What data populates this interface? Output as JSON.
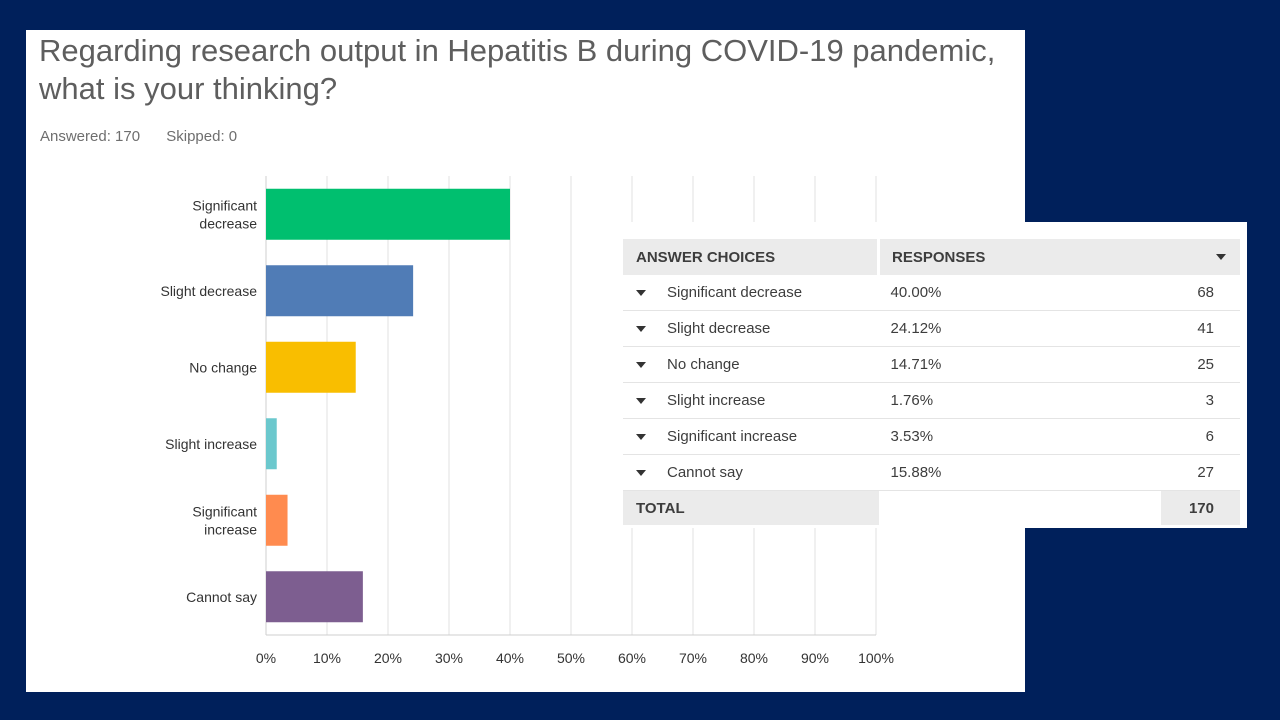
{
  "question": "Regarding research output in Hepatitis B during COVID-19 pandemic, what is your thinking?",
  "stats": {
    "answered": "Answered: 170",
    "skipped": "Skipped: 0"
  },
  "colors": {
    "background": "#00205b",
    "series": [
      "#00bf6f",
      "#507cb6",
      "#f9be00",
      "#6bc8cd",
      "#ff8b4f",
      "#7d5e90"
    ]
  },
  "chart_data": {
    "type": "bar",
    "orientation": "horizontal",
    "categories": [
      "Significant decrease",
      "Slight decrease",
      "No change",
      "Slight increase",
      "Significant increase",
      "Cannot say"
    ],
    "category_lines": [
      [
        "Significant",
        "decrease"
      ],
      [
        "Slight decrease"
      ],
      [
        "No change"
      ],
      [
        "Slight increase"
      ],
      [
        "Significant",
        "increase"
      ],
      [
        "Cannot say"
      ]
    ],
    "values": [
      40.0,
      24.12,
      14.71,
      1.76,
      3.53,
      15.88
    ],
    "xlim": [
      0,
      100
    ],
    "ticks": [
      "0%",
      "10%",
      "20%",
      "30%",
      "40%",
      "50%",
      "60%",
      "70%",
      "80%",
      "90%",
      "100%"
    ],
    "grid": true,
    "legend": "none"
  },
  "table": {
    "headers": {
      "choices": "ANSWER CHOICES",
      "responses": "RESPONSES"
    },
    "rows": [
      {
        "choice": "Significant decrease",
        "pct": "40.00%",
        "count": "68"
      },
      {
        "choice": "Slight decrease",
        "pct": "24.12%",
        "count": "41"
      },
      {
        "choice": "No change",
        "pct": "14.71%",
        "count": "25"
      },
      {
        "choice": "Slight increase",
        "pct": "1.76%",
        "count": "3"
      },
      {
        "choice": "Significant increase",
        "pct": "3.53%",
        "count": "6"
      },
      {
        "choice": "Cannot say",
        "pct": "15.88%",
        "count": "27"
      }
    ],
    "total": {
      "label": "TOTAL",
      "value": "170"
    }
  }
}
